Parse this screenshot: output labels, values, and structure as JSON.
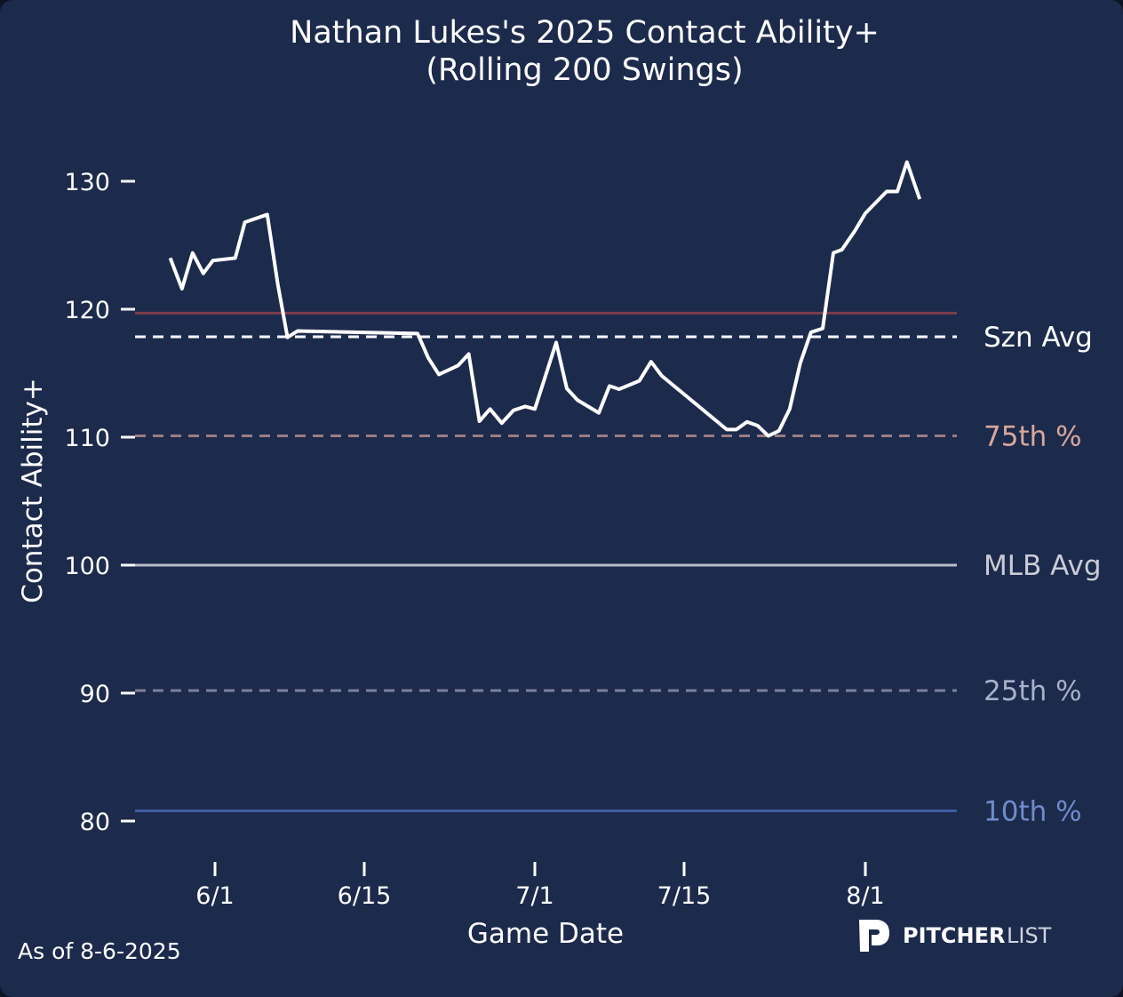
{
  "chart_data": {
    "type": "line",
    "title_line1": "Nathan Lukes's 2025 Contact Ability+",
    "title_line2": "(Rolling 200 Swings)",
    "xlabel": "Game Date",
    "ylabel": "Contact Ability+",
    "x_unit": "days from 6/1",
    "xlim": [
      -7.5,
      69.6
    ],
    "ylim": [
      77.5,
      135
    ],
    "x_ticks": [
      {
        "label": "6/1",
        "day": 0
      },
      {
        "label": "6/15",
        "day": 14
      },
      {
        "label": "7/1",
        "day": 30
      },
      {
        "label": "7/15",
        "day": 44
      },
      {
        "label": "8/1",
        "day": 61
      }
    ],
    "y_ticks": [
      80,
      90,
      100,
      110,
      120,
      130
    ],
    "reference_lines": [
      {
        "label": "",
        "value": 119.7,
        "style": "solid",
        "color": "#7d3b4b",
        "label_color": "#7d3b4b"
      },
      {
        "label": "Szn Avg",
        "value": 117.85,
        "style": "dashed",
        "color": "#ffffff",
        "label_color": "#ffffff"
      },
      {
        "label": "75th %",
        "value": 110.1,
        "style": "dashed",
        "color": "#9b7d82",
        "label_color": "#d9a89b"
      },
      {
        "label": "MLB Avg",
        "value": 100,
        "style": "solid",
        "color": "#b9bdc9",
        "label_color": "#c9ccd6"
      },
      {
        "label": "25th %",
        "value": 90.2,
        "style": "dashed",
        "color": "#7b8099",
        "label_color": "#a9b1c8"
      },
      {
        "label": "10th %",
        "value": 80.8,
        "style": "solid",
        "color": "#3f5ca0",
        "label_color": "#6f8dc9"
      }
    ],
    "series": [
      {
        "name": "Contact Ability+",
        "color": "#ffffff",
        "x": [
          -4.2,
          -3.1,
          -2.1,
          -1.1,
          -0.2,
          1.9,
          2.8,
          4.9,
          5.9,
          6.8,
          7.75,
          19,
          20,
          21,
          22.8,
          23.8,
          24.8,
          25.8,
          26.9,
          28,
          29.1,
          30,
          32,
          33,
          34,
          36,
          37,
          37.9,
          39.8,
          40.9,
          41.9,
          48,
          48.9,
          49.9,
          50.9,
          51.9,
          52.9,
          53.9,
          54.9,
          55.9,
          57,
          58,
          58.8,
          60,
          61,
          63,
          64,
          64.9,
          66.1
        ],
        "y": [
          124.0,
          121.6,
          124.4,
          122.8,
          123.8,
          124.0,
          126.8,
          127.4,
          121.9,
          117.8,
          118.3,
          118.1,
          116.2,
          114.9,
          115.6,
          116.5,
          111.25,
          112.2,
          111.1,
          112.1,
          112.4,
          112.2,
          117.4,
          113.8,
          112.9,
          111.9,
          114.0,
          113.75,
          114.4,
          115.9,
          114.8,
          110.6,
          110.6,
          111.2,
          110.9,
          110.1,
          110.5,
          112.2,
          115.8,
          118.2,
          118.5,
          124.4,
          124.65,
          126.1,
          127.5,
          129.2,
          129.2,
          131.5,
          128.6
        ]
      }
    ],
    "footnote": "As of 8-6-2025",
    "brand": {
      "bold": "PITCHER",
      "light": "LIST"
    },
    "background": "#1c2a4c"
  }
}
